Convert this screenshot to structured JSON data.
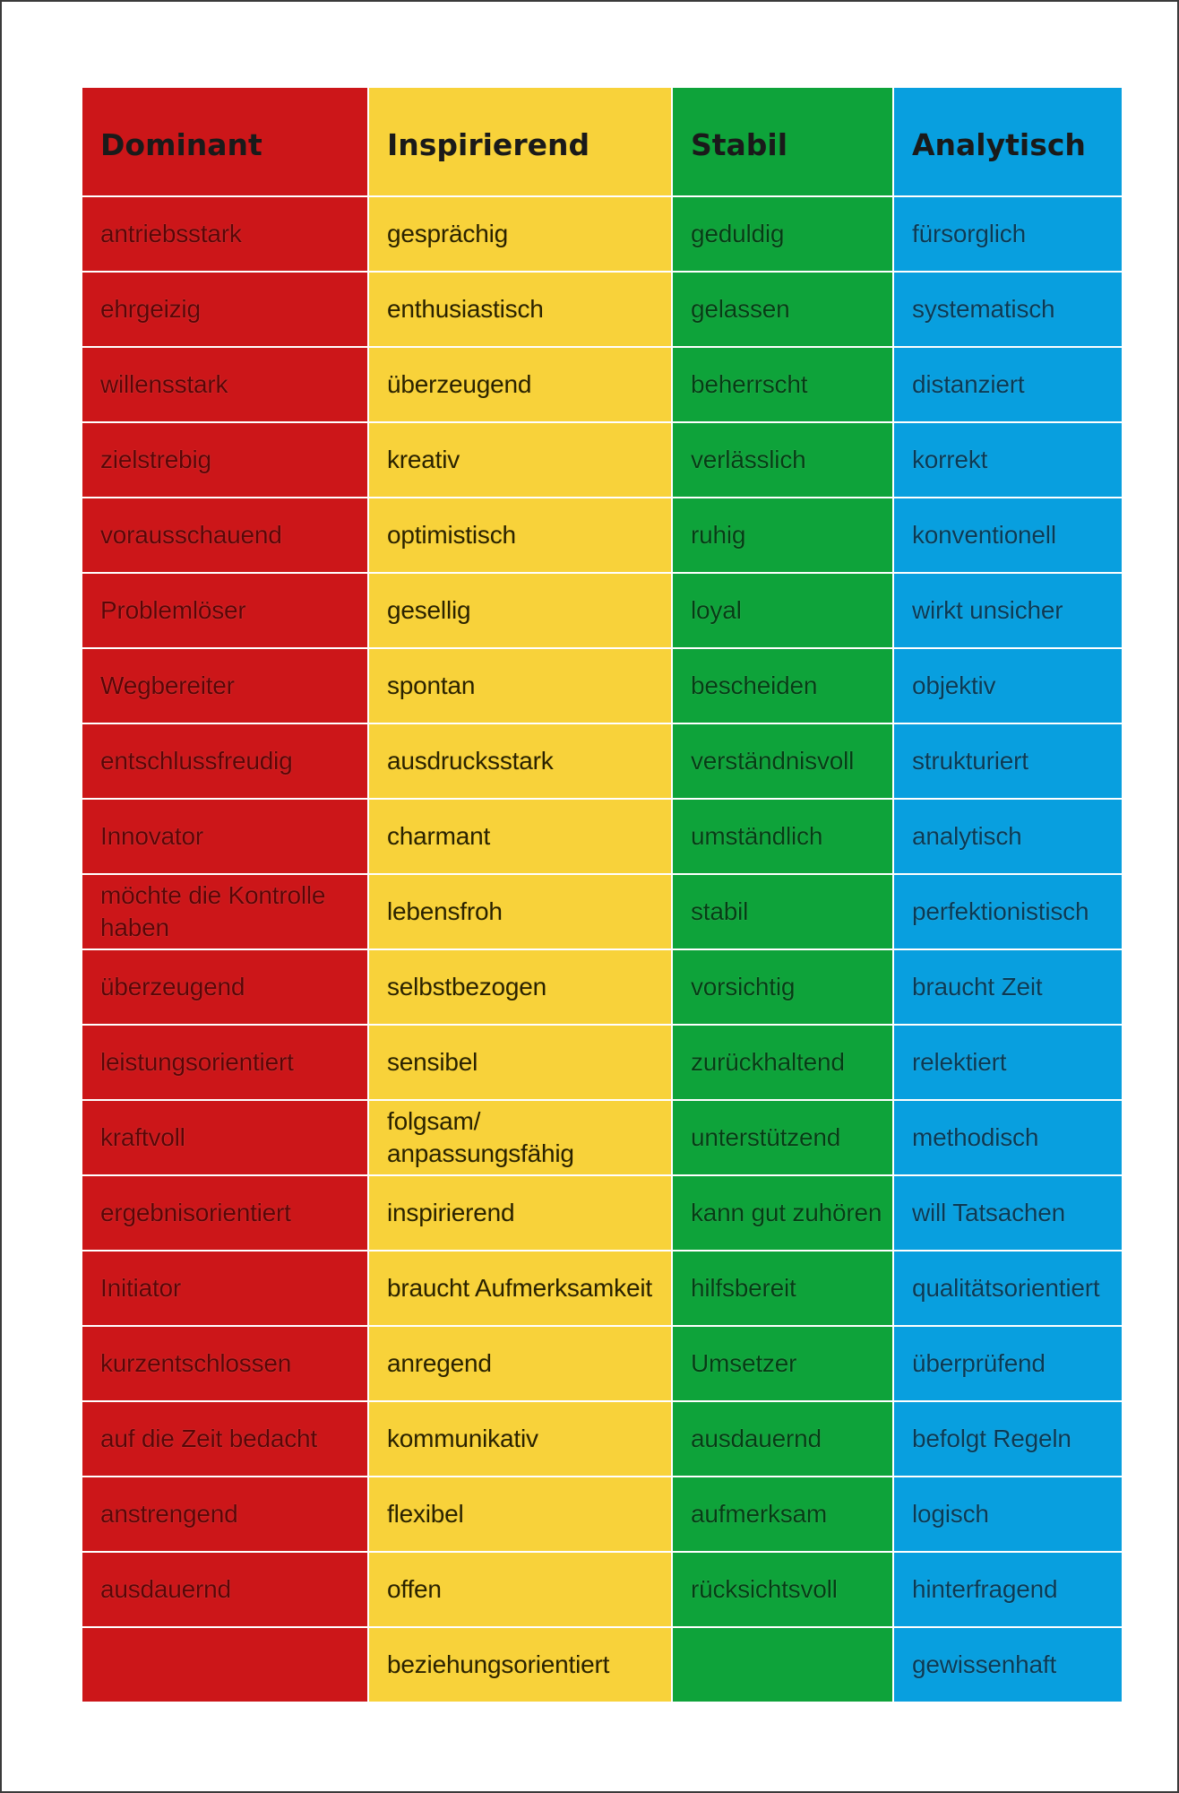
{
  "colors": {
    "dominant": "#cc1619",
    "inspirierend": "#f8d23a",
    "stabil": "#0ea33a",
    "analytisch": "#089fdf"
  },
  "headers": [
    "Dominant",
    "Inspirierend",
    "Stabil",
    "Analytisch"
  ],
  "rows": [
    [
      "antriebsstark",
      "gesprächig",
      "geduldig",
      "fürsorglich"
    ],
    [
      "ehrgeizig",
      "enthusiastisch",
      "gelassen",
      "systematisch"
    ],
    [
      "willensstark",
      "überzeugend",
      "beherrscht",
      "distanziert"
    ],
    [
      "zielstrebig",
      "kreativ",
      "verlässlich",
      "korrekt"
    ],
    [
      "vorausschauend",
      "optimistisch",
      "ruhig",
      "konventionell"
    ],
    [
      "Problemlöser",
      "gesellig",
      "loyal",
      "wirkt unsicher"
    ],
    [
      "Wegbereiter",
      "spontan",
      "bescheiden",
      "objektiv"
    ],
    [
      "entschlussfreudig",
      "ausdrucksstark",
      "verständnisvoll",
      "strukturiert"
    ],
    [
      "Innovator",
      "charmant",
      "umständlich",
      "analytisch"
    ],
    [
      "möchte die Kontrolle haben",
      "lebensfroh",
      "stabil",
      "perfektionistisch"
    ],
    [
      "überzeugend",
      "selbstbezogen",
      "vorsichtig",
      "braucht Zeit"
    ],
    [
      "leistungsorientiert",
      "sensibel",
      "zurückhaltend",
      "relektiert"
    ],
    [
      "kraftvoll",
      "folgsam/ anpassungsfähig",
      "unterstützend",
      "methodisch"
    ],
    [
      "ergebnisorientiert",
      "inspirierend",
      "kann gut zuhören",
      "will Tatsachen"
    ],
    [
      "Initiator",
      "braucht Aufmerksamkeit",
      "hilfsbereit",
      "qualitätsorientiert"
    ],
    [
      "kurzentschlossen",
      "anregend",
      "Umsetzer",
      "überprüfend"
    ],
    [
      "auf die Zeit bedacht",
      "kommunikativ",
      "ausdauernd",
      "befolgt Regeln"
    ],
    [
      "anstrengend",
      "flexibel",
      "aufmerksam",
      "logisch"
    ],
    [
      "ausdauernd",
      "offen",
      "rücksichtsvoll",
      "hinterfragend"
    ],
    [
      "",
      "beziehungsorientiert",
      "",
      "gewissenhaft"
    ]
  ]
}
